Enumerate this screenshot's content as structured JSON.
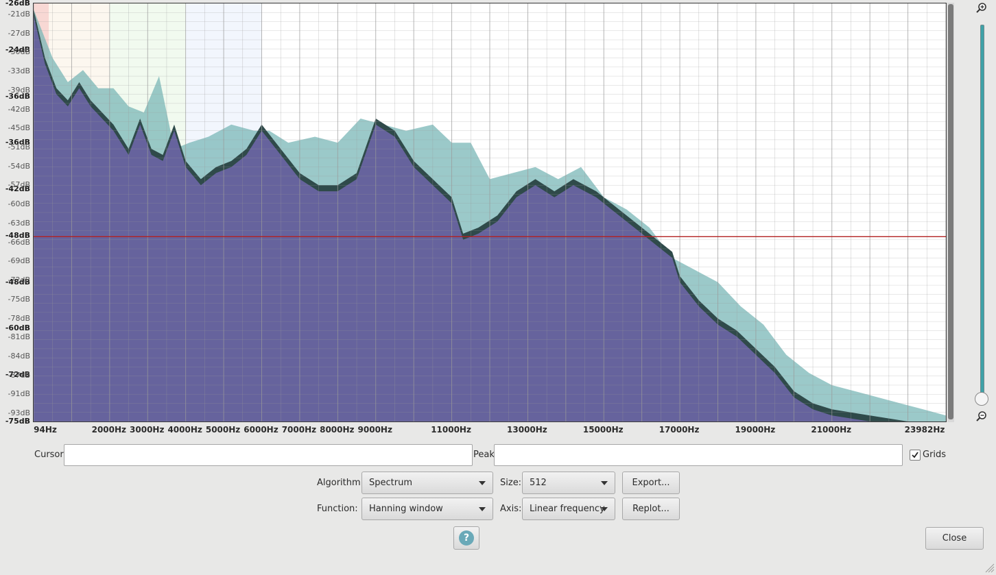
{
  "chart_data": {
    "type": "area",
    "title": "",
    "xlabel": "",
    "ylabel": "",
    "x_ticks": [
      "94Hz",
      "2000Hz",
      "3000Hz",
      "4000Hz",
      "5000Hz",
      "6000Hz",
      "7000Hz",
      "8000Hz",
      "9000Hz",
      "11000Hz",
      "13000Hz",
      "15000Hz",
      "17000Hz",
      "19000Hz",
      "21000Hz",
      "23982Hz"
    ],
    "x_tick_values": [
      94,
      2000,
      3000,
      4000,
      5000,
      6000,
      7000,
      8000,
      9000,
      11000,
      13000,
      15000,
      17000,
      19000,
      21000,
      23982
    ],
    "y_ticks_major": [
      "-26dB",
      "-24dB",
      "-36dB",
      "-36dB",
      "-42dB",
      "-48dB",
      "-48dB",
      "-60dB",
      "-72dB",
      "-75dB"
    ],
    "y_ticks_minor": [
      "-21dB",
      "-27dB",
      "-30dB",
      "-33dB",
      "-39dB",
      "-42dB",
      "-45dB",
      "-51dB",
      "-54dB",
      "-57dB",
      "-60dB",
      "-63dB",
      "-66dB",
      "-69dB",
      "-72dB",
      "-75dB",
      "-78dB",
      "-81dB",
      "-84dB",
      "-87dB",
      "-91dB",
      "-93dB"
    ],
    "xlim": [
      0,
      24000
    ],
    "ylim": [
      -95,
      -26
    ],
    "threshold_db": -64.5,
    "grid": true,
    "series": [
      {
        "color": "#7ab7b7",
        "x": [
          0,
          500,
          900,
          1300,
          1700,
          2100,
          2500,
          2900,
          3300,
          3700,
          4100,
          4600,
          5200,
          5800,
          6200,
          6700,
          7400,
          8000,
          8600,
          9200,
          9800,
          10500,
          11000,
          11500,
          12000,
          12600,
          13200,
          13800,
          14400,
          15000,
          15600,
          16200,
          16800,
          17400,
          18000,
          18600,
          19200,
          19800,
          20400,
          21000,
          21600,
          22200,
          22800,
          23400,
          24000
        ],
        "y": [
          -27,
          -35,
          -39,
          -37,
          -40,
          -40,
          -43,
          -44,
          -38,
          -50,
          -49,
          -48,
          -46,
          -47,
          -47,
          -49,
          -48,
          -49,
          -45,
          -46,
          -47,
          -46,
          -49,
          -49,
          -55,
          -54,
          -53,
          -55,
          -53,
          -58,
          -60,
          -63,
          -68,
          -70,
          -72,
          -76,
          -79,
          -84,
          -87,
          -89,
          -90,
          -91,
          -92,
          -93,
          -94
        ]
      },
      {
        "color": "#2f4a4a",
        "x": [
          0,
          300,
          600,
          900,
          1200,
          1500,
          1800,
          2100,
          2500,
          2800,
          3100,
          3400,
          3700,
          4000,
          4400,
          4800,
          5200,
          5600,
          6000,
          6500,
          7000,
          7500,
          8000,
          8500,
          9000,
          9500,
          10000,
          10500,
          11000,
          11300,
          11700,
          12200,
          12700,
          13200,
          13700,
          14200,
          14800,
          15400,
          16000,
          16400,
          16800,
          17000,
          17500,
          18000,
          18500,
          19000,
          19500,
          20000,
          20500,
          21000,
          22000,
          23000,
          24000
        ],
        "y": [
          -27,
          -35,
          -40,
          -42,
          -39,
          -42,
          -44,
          -46,
          -50,
          -45,
          -50,
          -51,
          -46,
          -52,
          -55,
          -53,
          -52,
          -50,
          -46,
          -50,
          -54,
          -56,
          -56,
          -54,
          -45,
          -47,
          -52,
          -55,
          -58,
          -64,
          -63,
          -61,
          -57,
          -55,
          -57,
          -55,
          -57,
          -60,
          -63,
          -65,
          -67,
          -71,
          -75,
          -78,
          -80,
          -83,
          -86,
          -90,
          -92,
          -93,
          -94,
          -95,
          -95
        ]
      },
      {
        "color": "#6e67a8",
        "x": [
          0,
          300,
          600,
          900,
          1200,
          1500,
          1800,
          2100,
          2500,
          2800,
          3100,
          3400,
          3700,
          4000,
          4400,
          4800,
          5200,
          5600,
          6000,
          6500,
          7000,
          7500,
          8000,
          8500,
          9000,
          9500,
          10000,
          10500,
          11000,
          11300,
          11700,
          12200,
          12700,
          13200,
          13700,
          14200,
          14800,
          15400,
          16000,
          16400,
          16800,
          17000,
          17500,
          18000,
          18500,
          19000,
          19500,
          20000,
          20500,
          21000,
          22000,
          23000,
          24000
        ],
        "y": [
          -28,
          -36,
          -41,
          -43,
          -40,
          -43,
          -45,
          -47,
          -51,
          -46,
          -51,
          -52,
          -47,
          -53,
          -56,
          -54,
          -53,
          -51,
          -47,
          -51,
          -55,
          -57,
          -57,
          -55,
          -46,
          -48,
          -53,
          -56,
          -59,
          -65,
          -64,
          -62,
          -58,
          -56,
          -58,
          -56,
          -58,
          -61,
          -64,
          -66,
          -68,
          -72,
          -76,
          -79,
          -81,
          -84,
          -87,
          -91,
          -93,
          -94,
          -95,
          -95,
          -95
        ]
      }
    ],
    "bands": [
      {
        "from": 0,
        "to": 400,
        "color": "#f2b8b0"
      },
      {
        "from": 400,
        "to": 2000,
        "color": "#faf0e1"
      },
      {
        "from": 2000,
        "to": 4000,
        "color": "#e6f5e1"
      },
      {
        "from": 4000,
        "to": 6000,
        "color": "#e8eefc"
      }
    ]
  },
  "controls": {
    "cursor_label": "Cursor:",
    "cursor_value": "",
    "peak_label": "Peak:",
    "peak_value": "",
    "grids_label": "Grids",
    "grids_checked": true,
    "algorithm_label": "Algorithm:",
    "algorithm_value": "Spectrum",
    "size_label": "Size:",
    "size_value": "512",
    "export_label": "Export...",
    "function_label": "Function:",
    "function_value": "Hanning window",
    "axis_label": "Axis:",
    "axis_value": "Linear frequency",
    "replot_label": "Replot...",
    "help_label": "?",
    "close_label": "Close"
  },
  "icons": {
    "zoom_in": "zoom-in-icon",
    "zoom_out": "zoom-out-icon",
    "help": "help-icon",
    "dropdown": "chevron-down-icon"
  },
  "colors": {
    "threshold": "#b32020",
    "grid": "#9a9a9a",
    "accent": "#3ea2a8"
  }
}
